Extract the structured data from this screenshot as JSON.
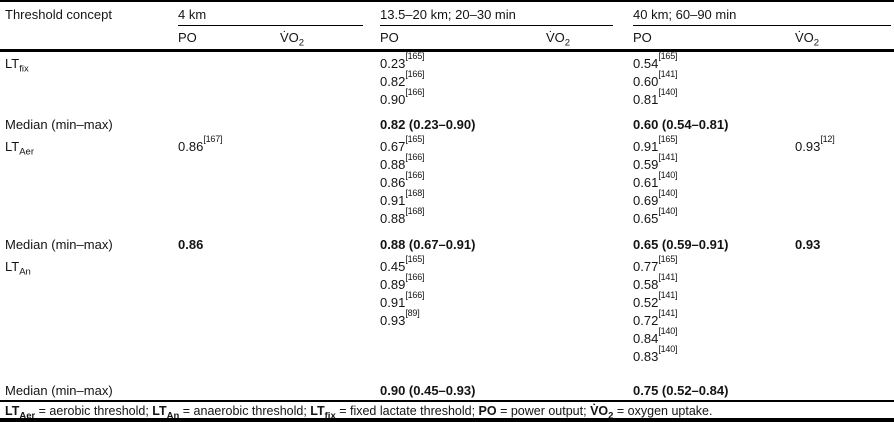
{
  "table": {
    "header": {
      "col1": "Threshold concept",
      "po_label": "PO",
      "vo2_base": "V̇O",
      "vo2_sub": "2",
      "groups": [
        {
          "label": "4 km"
        },
        {
          "label": "13.5–20 km; 20–30 min"
        },
        {
          "label": "40 km; 60–90 min"
        }
      ]
    },
    "rows": [
      {
        "type": "concept",
        "label_base": "LT",
        "label_sub": "fix",
        "cells": {
          "g1_po": [],
          "g1_vo2": [],
          "g2_po": [
            {
              "v": "0.23",
              "ref": "[165]"
            },
            {
              "v": "0.82",
              "ref": "[166]"
            },
            {
              "v": "0.90",
              "ref": "[166]"
            }
          ],
          "g2_vo2": [],
          "g3_po": [
            {
              "v": "0.54",
              "ref": "[165]"
            },
            {
              "v": "0.60",
              "ref": "[141]"
            },
            {
              "v": "0.81",
              "ref": "[140]"
            }
          ],
          "g3_vo2": []
        }
      },
      {
        "type": "median",
        "variant": "m1",
        "label": "Median (min–max)",
        "cells": {
          "g1_po": "",
          "g1_vo2": "",
          "g2_po": "0.82 (0.23–0.90)",
          "g2_vo2": "",
          "g3_po": "0.60 (0.54–0.81)",
          "g3_vo2": ""
        }
      },
      {
        "type": "concept",
        "label_base": "LT",
        "label_sub": "Aer",
        "cells": {
          "g1_po": [
            {
              "v": "0.86",
              "ref": "[167]"
            }
          ],
          "g1_vo2": [],
          "g2_po": [
            {
              "v": "0.67",
              "ref": "[165]"
            },
            {
              "v": "0.88",
              "ref": "[166]"
            },
            {
              "v": "0.86",
              "ref": "[166]"
            },
            {
              "v": "0.91",
              "ref": "[168]"
            },
            {
              "v": "0.88",
              "ref": "[168]"
            }
          ],
          "g2_vo2": [],
          "g3_po": [
            {
              "v": "0.91",
              "ref": "[165]"
            },
            {
              "v": "0.59",
              "ref": "[141]"
            },
            {
              "v": "0.61",
              "ref": "[140]"
            },
            {
              "v": "0.69",
              "ref": "[140]"
            },
            {
              "v": "0.65",
              "ref": "[140]"
            }
          ],
          "g3_vo2": [
            {
              "v": "0.93",
              "ref": "[12]"
            }
          ]
        }
      },
      {
        "type": "median",
        "variant": "m2",
        "label": "Median (min–max)",
        "cells": {
          "g1_po": "0.86",
          "g1_vo2": "",
          "g2_po": "0.88 (0.67–0.91)",
          "g2_vo2": "",
          "g3_po": "0.65 (0.59–0.91)",
          "g3_vo2": "0.93"
        }
      },
      {
        "type": "concept",
        "label_base": "LT",
        "label_sub": "An",
        "cells": {
          "g1_po": [],
          "g1_vo2": [],
          "g2_po": [
            {
              "v": "0.45",
              "ref": "[165]"
            },
            {
              "v": "0.89",
              "ref": "[166]"
            },
            {
              "v": "0.91",
              "ref": "[166]"
            },
            {
              "v": "0.93",
              "ref": "[89]"
            }
          ],
          "g2_vo2": [],
          "g3_po": [
            {
              "v": "0.77",
              "ref": "[165]"
            },
            {
              "v": "0.58",
              "ref": "[141]"
            },
            {
              "v": "0.52",
              "ref": "[141]"
            },
            {
              "v": "0.72",
              "ref": "[141]"
            },
            {
              "v": "0.84",
              "ref": "[140]"
            },
            {
              "v": "0.83",
              "ref": "[140]"
            }
          ],
          "g3_vo2": []
        }
      },
      {
        "type": "median",
        "variant": "m3",
        "label": "Median (min–max)",
        "cells": {
          "g1_po": "",
          "g1_vo2": "",
          "g2_po": "0.90 (0.45–0.93)",
          "g2_vo2": "",
          "g3_po": "0.75 (0.52–0.84)",
          "g3_vo2": ""
        }
      }
    ],
    "footnote": [
      {
        "b": "LT",
        "bsub": "Aer"
      },
      {
        "t": " = aerobic threshold; "
      },
      {
        "b": "LT",
        "bsub": "An"
      },
      {
        "t": " = anaerobic threshold; "
      },
      {
        "b": "LT",
        "bsub": "fix"
      },
      {
        "t": " = fixed lactate threshold; "
      },
      {
        "b": "PO"
      },
      {
        "t": " = power output; "
      },
      {
        "b": "V̇O",
        "bsub": "2"
      },
      {
        "t": " = oxygen uptake."
      }
    ]
  }
}
